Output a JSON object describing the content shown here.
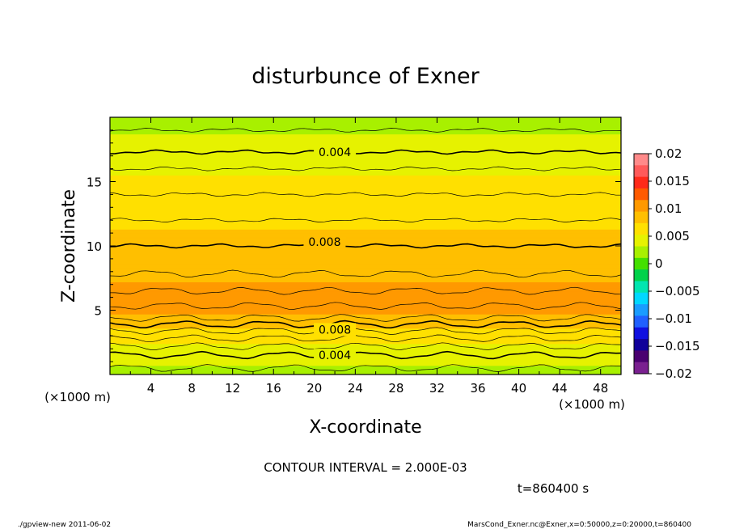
{
  "chart_data": {
    "type": "heatmap",
    "title": "disturbunce of Exner",
    "xlabel": "X-coordinate",
    "ylabel": "Z-coordinate",
    "x_unit": "(×1000 m)",
    "y_unit": "(×1000 m)",
    "xlim": [
      0,
      50
    ],
    "ylim": [
      0,
      20
    ],
    "x_ticks": [
      4,
      8,
      12,
      16,
      20,
      24,
      28,
      32,
      36,
      40,
      44,
      48
    ],
    "y_ticks": [
      5,
      10,
      15
    ],
    "colorbar": {
      "range": [
        -0.02,
        0.02
      ],
      "tick_values": [
        0.02,
        0.015,
        0.01,
        0.005,
        0,
        -0.005,
        -0.01,
        -0.015,
        -0.02
      ],
      "tick_labels": [
        "0.02",
        "0.015",
        "0.01",
        "0.005",
        "0",
        "−0.005",
        "−0.01",
        "−0.015",
        "−0.02"
      ],
      "levels_top_to_bottom": [
        "#ff8a8a",
        "#ff5a5a",
        "#ff2a1a",
        "#ff5a00",
        "#ff9900",
        "#ffbf00",
        "#ffe000",
        "#e6f200",
        "#a8f000",
        "#44e000",
        "#00d24a",
        "#00e5b0",
        "#00d8ff",
        "#1a9cff",
        "#2060ff",
        "#1010e0",
        "#10009a",
        "#4a0070",
        "#7a2090"
      ]
    },
    "contour_interval": "2.000E-03",
    "contour_labels": [
      {
        "text": "0.004",
        "x": 22,
        "z": 17.3
      },
      {
        "text": "0.008",
        "x": 21,
        "z": 10.3
      },
      {
        "text": "0.008",
        "x": 22,
        "z": 3.5
      },
      {
        "text": "0.004",
        "x": 22,
        "z": 1.5
      }
    ],
    "profile_z": [
      0,
      0.5,
      1.0,
      1.5,
      2.0,
      2.5,
      3.0,
      3.5,
      4.0,
      4.5,
      5.0,
      5.5,
      6.0,
      6.5,
      7.0,
      7.5,
      8.0,
      9.0,
      10.0,
      11.0,
      12.0,
      13.0,
      14.0,
      15.0,
      16.0,
      17.0,
      17.3,
      18.0,
      19.0,
      20.0
    ],
    "profile_value": [
      0.0025,
      0.003,
      0.0035,
      0.004,
      0.0047,
      0.0055,
      0.0063,
      0.0072,
      0.0082,
      0.0092,
      0.0098,
      0.0101,
      0.0102,
      0.01,
      0.0096,
      0.0092,
      0.0089,
      0.0085,
      0.008,
      0.0075,
      0.007,
      0.0064,
      0.006,
      0.0055,
      0.005,
      0.0045,
      0.004,
      0.0035,
      0.003,
      0.0025
    ],
    "time_label": "t=860400 s"
  },
  "footer": {
    "left": "./gpview-new   2011-06-02",
    "right": "MarsCond_Exner.nc@Exner,x=0:50000,z=0:20000,t=860400"
  },
  "contour_interval_text": "CONTOUR INTERVAL = 2.000E-03"
}
